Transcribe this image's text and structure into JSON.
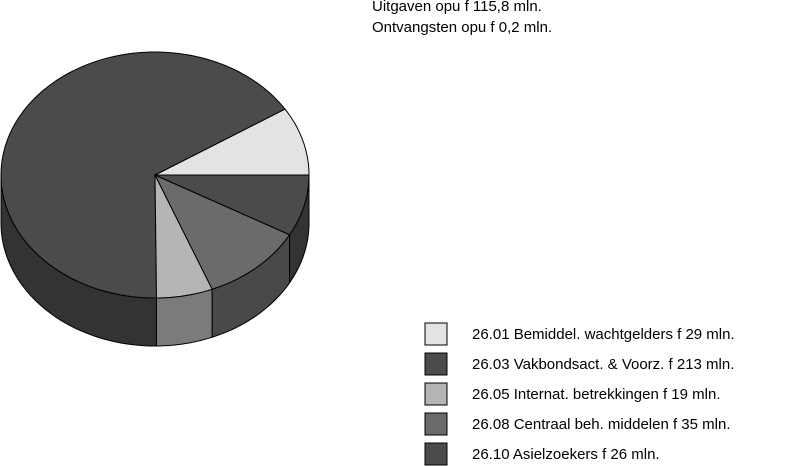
{
  "chart_data": {
    "type": "pie3d",
    "title": "Uitgaven opu f 115,8 mln.",
    "subtitle": "Ontvangsten opu f 0,2 mln.",
    "categories": [
      "26.01 Bemiddel. wachtgelders f 29 mln.",
      "26.03 Vakbondsact. & Voorz. f 213 mln.",
      "26.05 Internat. betrekkingen f 19 mln.",
      "26.08 Centraal beh. middelen f 35 mln.",
      "26.10 Asielzoekers f 26 mln."
    ],
    "values": [
      29,
      213,
      19,
      35,
      26
    ],
    "colors": [
      "#e3e3e3",
      "#4b4b4b",
      "#b5b5b5",
      "#6b6b6b",
      "#4b4b4b"
    ],
    "legend": "bottom-right"
  }
}
